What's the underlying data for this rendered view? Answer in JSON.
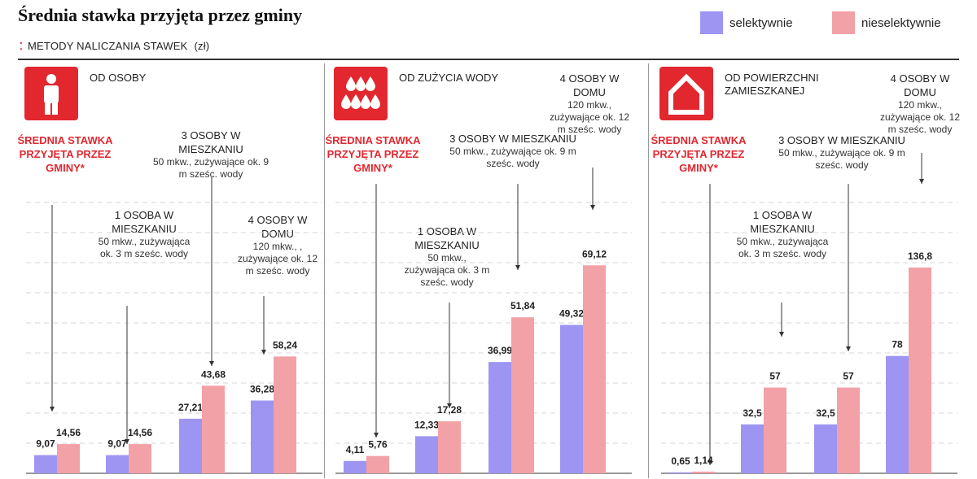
{
  "title": "Średnia stawka przyjęta przez gminy",
  "subtitle": {
    "dots": "⁚",
    "text": "METODY NALICZANIA STAWEK",
    "unit": "(zł)"
  },
  "legend": [
    {
      "name": "selektywnie",
      "color": "#9e95f2"
    },
    {
      "name": "nieselektywnie",
      "color": "#f2a1a7"
    }
  ],
  "colors": {
    "accent": "#e2272f",
    "grid": "#d6d6d6",
    "line": "#333333"
  },
  "panels": [
    {
      "icon": "person-icon",
      "title": "OD OSOBY",
      "red_label": "ŚREDNIA STAWKA PRZYJĘTA PRZEZ GMINY*",
      "annotations": [
        {
          "main": "1 OSOBA W MIESZKANIU",
          "sub": "50 mkw., zużywająca ok. 3 m sześc. wody"
        },
        {
          "main": "3 OSOBY W MIESZKANIU",
          "sub": "50 mkw., zużywające ok. 9 m sześc. wody"
        },
        {
          "main": "4 OSOBY W DOMU",
          "sub": "120 mkw., , zużywające ok. 12 m sześc. wody"
        }
      ]
    },
    {
      "icon": "water-drops-icon",
      "title": "OD ZUŻYCIA WODY",
      "red_label": "ŚREDNIA STAWKA PRZYJĘTA PRZEZ GMINY*",
      "annotations": [
        {
          "main": "1 OSOBA W MIESZKANIU",
          "sub": "50 mkw., zużywająca ok. 3 m sześc. wody"
        },
        {
          "main": "3 OSOBY W MIESZKANIU",
          "sub": "50 mkw., zużywające ok. 9 m sześc. wody"
        },
        {
          "main": "4 OSOBY W DOMU",
          "sub": "120 mkw., zużywające ok. 12 m sześc. wody"
        }
      ]
    },
    {
      "icon": "house-icon",
      "title": "OD POWIERZCHNI ZAMIESZKANEJ",
      "red_label": "ŚREDNIA STAWKA PRZYJĘTA PRZEZ GMINY*",
      "annotations": [
        {
          "main": "1 OSOBA W MIESZKANIU",
          "sub": "50 mkw., zużywająca ok. 3 m sześc. wody"
        },
        {
          "main": "3 OSOBY W MIESZKANIU",
          "sub": "50 mkw., zużywające ok. 9 m sześc. wody"
        },
        {
          "main": "4 OSOBY W DOMU",
          "sub": "120 mkw., zużywające ok. 12 m sześc. wody"
        }
      ]
    }
  ],
  "chart_data": [
    {
      "type": "bar",
      "title": "OD OSOBY",
      "categories": [
        "ŚREDNIA STAWKA PRZYJĘTA PRZEZ GMINY*",
        "1 OSOBA W MIESZKANIU",
        "3 OSOBY W MIESZKANIU",
        "4 OSOBY W DOMU"
      ],
      "series": [
        {
          "name": "selektywnie",
          "values": [
            9.07,
            9.07,
            27.21,
            36.28
          ],
          "labels": [
            "9,07",
            "9,07",
            "27,21",
            "36,28"
          ]
        },
        {
          "name": "nieselektywnie",
          "values": [
            14.56,
            14.56,
            43.68,
            58.24
          ],
          "labels": [
            "14,56",
            "14,56",
            "43,68",
            "58,24"
          ]
        }
      ],
      "ylim": [
        0,
        150
      ],
      "grid": true
    },
    {
      "type": "bar",
      "title": "OD ZUŻYCIA WODY",
      "categories": [
        "ŚREDNIA STAWKA PRZYJĘTA PRZEZ GMINY*",
        "1 OSOBA W MIESZKANIU",
        "3 OSOBY W MIESZKANIU",
        "4 OSOBY W DOMU"
      ],
      "series": [
        {
          "name": "selektywnie",
          "values": [
            4.11,
            12.33,
            36.99,
            49.32
          ],
          "labels": [
            "4,11",
            "12,33",
            "36,99",
            "49,32"
          ]
        },
        {
          "name": "nieselektywnie",
          "values": [
            5.76,
            17.28,
            51.84,
            69.12
          ],
          "labels": [
            "5,76",
            "17,28",
            "51,84",
            "69,12"
          ]
        }
      ],
      "ylim": [
        0,
        100
      ],
      "grid": true
    },
    {
      "type": "bar",
      "title": "OD POWIERZCHNI ZAMIESZKANEJ",
      "categories": [
        "ŚREDNIA STAWKA PRZYJĘTA PRZEZ GMINY*",
        "1 OSOBA W MIESZKANIU",
        "3 OSOBY W MIESZKANIU",
        "4 OSOBY W DOMU"
      ],
      "series": [
        {
          "name": "selektywnie",
          "values": [
            0.65,
            32.5,
            32.5,
            78
          ],
          "labels": [
            "0,65",
            "32,5",
            "32,5",
            "78"
          ]
        },
        {
          "name": "nieselektywnie",
          "values": [
            1.14,
            57,
            57,
            136.8
          ],
          "labels": [
            "1,14",
            "57",
            "57",
            "136,8"
          ]
        }
      ],
      "ylim": [
        0,
        200
      ],
      "grid": true
    }
  ]
}
